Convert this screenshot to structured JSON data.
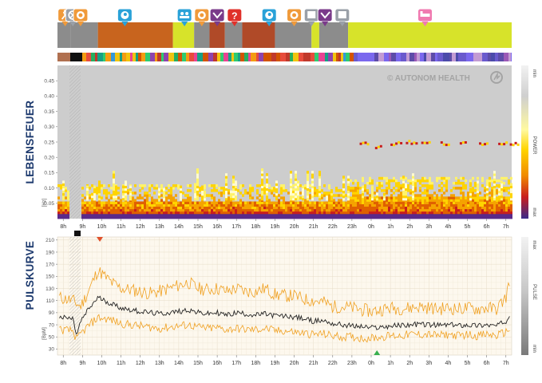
{
  "watermark": "© AUTONOM HEALTH",
  "panels": {
    "top": {
      "title": "LEBENSFEUER",
      "unit": "[Hz]",
      "scale_top": "min",
      "scale_mid": "POWER",
      "scale_bottom": "max"
    },
    "bottom": {
      "title": "PULSKURVE",
      "unit": "[BpM]",
      "scale_top": "max",
      "scale_mid": "PULSE",
      "scale_bottom": "min"
    }
  },
  "colors": {
    "activity_orange": "#c8641e",
    "activity_gray": "#8c8c8c",
    "activity_yellow": "#d7e32a",
    "activity_red": "#b04a28",
    "pin_blue": "#2aa2d8",
    "pin_orange": "#f09a3a",
    "pin_purple": "#7a3a8a",
    "pin_red": "#e0312a",
    "pin_gray": "#9aa0a8",
    "pin_pink": "#f07ab0",
    "pulse_mean": "#222222",
    "pulse_band": "#f0a020",
    "max_marker": "#e0502a",
    "min_marker": "#38b050"
  },
  "icons": [
    "run-icon",
    "clock-icon",
    "food-icon",
    "head-icon",
    "group-icon",
    "food-icon",
    "sleep-icon",
    "question-icon",
    "head-icon",
    "food-icon",
    "rest-icon",
    "sleep-icon",
    "rest-icon",
    "bed-icon"
  ],
  "chart_data": [
    {
      "type": "heatmap",
      "title": "LEBENSFEUER",
      "ylabel": "[Hz]",
      "ylim": [
        0,
        0.5
      ],
      "yticks": [
        "0.05",
        "0.10",
        "0.15",
        "0.20",
        "0.25",
        "0.30",
        "0.35",
        "0.40",
        "0.45"
      ],
      "ytick_values": [
        0.05,
        0.1,
        0.15,
        0.2,
        0.25,
        0.3,
        0.35,
        0.4,
        0.45
      ],
      "x": [
        "8h",
        "9h",
        "10h",
        "11h",
        "12h",
        "13h",
        "14h",
        "15h",
        "16h",
        "17h",
        "18h",
        "19h",
        "20h",
        "21h",
        "22h",
        "23h",
        "0h",
        "1h",
        "2h",
        "3h",
        "4h",
        "5h",
        "6h",
        "7h"
      ],
      "xlim_hours": [
        7.7,
        31.3
      ],
      "color_scale": [
        "min",
        "POWER",
        "max"
      ],
      "activity_bands": [
        {
          "from": 7.7,
          "to": 8.4,
          "color": "gray"
        },
        {
          "from": 8.4,
          "to": 9.8,
          "color": "gray"
        },
        {
          "from": 9.8,
          "to": 13.7,
          "color": "orange"
        },
        {
          "from": 13.7,
          "to": 14.8,
          "color": "yellow"
        },
        {
          "from": 14.8,
          "to": 15.6,
          "color": "gray"
        },
        {
          "from": 15.6,
          "to": 16.4,
          "color": "red"
        },
        {
          "from": 16.4,
          "to": 17.3,
          "color": "gray"
        },
        {
          "from": 17.3,
          "to": 19.0,
          "color": "red"
        },
        {
          "from": 19.0,
          "to": 20.9,
          "color": "gray"
        },
        {
          "from": 20.9,
          "to": 21.3,
          "color": "yellow"
        },
        {
          "from": 21.3,
          "to": 22.8,
          "color": "gray"
        },
        {
          "from": 22.8,
          "to": 31.3,
          "color": "yellow"
        }
      ],
      "markers": [
        {
          "hour": 8.1,
          "icon": "run-icon",
          "color": "orange"
        },
        {
          "hour": 8.5,
          "icon": "clock-icon",
          "color": "gray"
        },
        {
          "hour": 8.9,
          "icon": "food-icon",
          "color": "orange"
        },
        {
          "hour": 11.2,
          "icon": "head-icon",
          "color": "blue"
        },
        {
          "hour": 14.3,
          "icon": "group-icon",
          "color": "blue"
        },
        {
          "hour": 15.2,
          "icon": "food-icon",
          "color": "orange"
        },
        {
          "hour": 16.0,
          "icon": "sleep-icon",
          "color": "purple"
        },
        {
          "hour": 16.9,
          "icon": "question-icon",
          "color": "red"
        },
        {
          "hour": 18.7,
          "icon": "head-icon",
          "color": "blue"
        },
        {
          "hour": 20.0,
          "icon": "food-icon",
          "color": "orange"
        },
        {
          "hour": 20.9,
          "icon": "rest-icon",
          "color": "gray"
        },
        {
          "hour": 21.6,
          "icon": "sleep-icon",
          "color": "purple"
        },
        {
          "hour": 22.5,
          "icon": "rest-icon",
          "color": "gray"
        },
        {
          "hour": 26.8,
          "icon": "bed-icon",
          "color": "pink"
        }
      ]
    },
    {
      "type": "line",
      "title": "PULSKURVE",
      "ylabel": "[BpM]",
      "ylim": [
        20,
        215
      ],
      "yticks": [
        "30",
        "50",
        "70",
        "90",
        "110",
        "130",
        "150",
        "170",
        "190",
        "210"
      ],
      "ytick_values": [
        30,
        50,
        70,
        90,
        110,
        130,
        150,
        170,
        190,
        210
      ],
      "x": [
        "8h",
        "9h",
        "10h",
        "11h",
        "12h",
        "13h",
        "14h",
        "15h",
        "16h",
        "17h",
        "18h",
        "19h",
        "20h",
        "21h",
        "22h",
        "23h",
        "0h",
        "1h",
        "2h",
        "3h",
        "4h",
        "5h",
        "6h",
        "7h"
      ],
      "xlim_hours": [
        7.7,
        31.3
      ],
      "series": [
        {
          "values": [
            [
              7.8,
              82
            ],
            [
              8.5,
              80
            ],
            [
              8.7,
              52
            ],
            [
              8.9,
              75
            ],
            [
              9.3,
              95
            ],
            [
              9.8,
              115
            ],
            [
              10.5,
              105
            ],
            [
              11.0,
              98
            ],
            [
              11.5,
              95
            ],
            [
              12.0,
              92
            ],
            [
              12.5,
              90
            ],
            [
              13.0,
              88
            ],
            [
              13.5,
              90
            ],
            [
              14.0,
              92
            ],
            [
              14.5,
              95
            ],
            [
              15.0,
              90
            ],
            [
              15.5,
              88
            ],
            [
              16.0,
              90
            ],
            [
              16.5,
              86
            ],
            [
              17.0,
              90
            ],
            [
              17.5,
              88
            ],
            [
              18.0,
              86
            ],
            [
              18.5,
              88
            ],
            [
              19.0,
              85
            ],
            [
              19.5,
              84
            ],
            [
              20.0,
              83
            ],
            [
              20.5,
              80
            ],
            [
              21.0,
              76
            ],
            [
              21.5,
              77
            ],
            [
              22.0,
              72
            ],
            [
              22.5,
              70
            ],
            [
              23.0,
              68
            ],
            [
              23.5,
              67
            ],
            [
              24.0,
              65
            ],
            [
              24.5,
              66
            ],
            [
              25.0,
              68
            ],
            [
              25.5,
              69
            ],
            [
              26.0,
              70
            ],
            [
              26.5,
              71
            ],
            [
              27.0,
              70
            ],
            [
              27.5,
              69
            ],
            [
              28.0,
              70
            ],
            [
              28.5,
              69
            ],
            [
              29.0,
              70
            ],
            [
              29.5,
              69
            ],
            [
              30.0,
              70
            ],
            [
              30.5,
              68
            ],
            [
              31.0,
              76
            ],
            [
              31.2,
              88
            ]
          ]
        }
      ],
      "band_upper": [
        [
          7.8,
          115
        ],
        [
          8.5,
          110
        ],
        [
          8.9,
          100
        ],
        [
          9.3,
          125
        ],
        [
          9.8,
          160
        ],
        [
          10.5,
          140
        ],
        [
          11.0,
          130
        ],
        [
          11.5,
          128
        ],
        [
          12.0,
          125
        ],
        [
          12.5,
          122
        ],
        [
          13.0,
          125
        ],
        [
          13.5,
          130
        ],
        [
          14.0,
          135
        ],
        [
          14.5,
          140
        ],
        [
          15.0,
          130
        ],
        [
          15.5,
          128
        ],
        [
          16.0,
          130
        ],
        [
          16.5,
          125
        ],
        [
          17.0,
          130
        ],
        [
          17.5,
          125
        ],
        [
          18.0,
          125
        ],
        [
          18.5,
          130
        ],
        [
          19.0,
          120
        ],
        [
          19.5,
          118
        ],
        [
          20.0,
          118
        ],
        [
          20.5,
          112
        ],
        [
          21.0,
          110
        ],
        [
          21.5,
          108
        ],
        [
          22.0,
          100
        ],
        [
          22.5,
          100
        ],
        [
          23.0,
          98
        ],
        [
          23.5,
          95
        ],
        [
          24.0,
          92
        ],
        [
          24.5,
          95
        ],
        [
          25.0,
          98
        ],
        [
          25.5,
          97
        ],
        [
          26.0,
          98
        ],
        [
          26.5,
          100
        ],
        [
          27.0,
          98
        ],
        [
          27.5,
          96
        ],
        [
          28.0,
          98
        ],
        [
          28.5,
          96
        ],
        [
          29.0,
          98
        ],
        [
          29.5,
          96
        ],
        [
          30.0,
          98
        ],
        [
          30.5,
          96
        ],
        [
          31.0,
          115
        ],
        [
          31.2,
          145
        ]
      ],
      "band_lower": [
        [
          7.8,
          62
        ],
        [
          8.5,
          60
        ],
        [
          8.7,
          45
        ],
        [
          8.9,
          55
        ],
        [
          9.3,
          68
        ],
        [
          9.8,
          82
        ],
        [
          10.5,
          78
        ],
        [
          11.0,
          72
        ],
        [
          11.5,
          70
        ],
        [
          12.0,
          68
        ],
        [
          12.5,
          66
        ],
        [
          13.0,
          64
        ],
        [
          13.5,
          66
        ],
        [
          14.0,
          68
        ],
        [
          14.5,
          70
        ],
        [
          15.0,
          66
        ],
        [
          15.5,
          64
        ],
        [
          16.0,
          65
        ],
        [
          16.5,
          62
        ],
        [
          17.0,
          64
        ],
        [
          17.5,
          62
        ],
        [
          18.0,
          62
        ],
        [
          18.5,
          64
        ],
        [
          19.0,
          60
        ],
        [
          19.5,
          60
        ],
        [
          20.0,
          58
        ],
        [
          20.5,
          56
        ],
        [
          21.0,
          54
        ],
        [
          21.5,
          55
        ],
        [
          22.0,
          52
        ],
        [
          22.5,
          50
        ],
        [
          23.0,
          50
        ],
        [
          23.5,
          48
        ],
        [
          24.0,
          48
        ],
        [
          24.5,
          50
        ],
        [
          25.0,
          52
        ],
        [
          25.5,
          52
        ],
        [
          26.0,
          54
        ],
        [
          26.5,
          54
        ],
        [
          27.0,
          54
        ],
        [
          27.5,
          52
        ],
        [
          28.0,
          54
        ],
        [
          28.5,
          52
        ],
        [
          29.0,
          54
        ],
        [
          29.5,
          52
        ],
        [
          30.0,
          54
        ],
        [
          30.5,
          52
        ],
        [
          31.0,
          58
        ],
        [
          31.2,
          64
        ]
      ],
      "max_marker_hour": 9.9,
      "min_marker_hour": 24.3
    }
  ]
}
